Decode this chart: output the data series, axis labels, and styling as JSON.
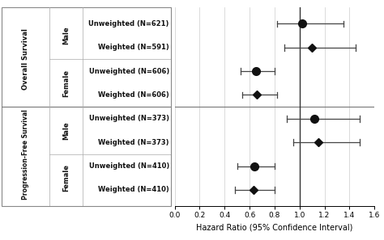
{
  "rows": [
    {
      "label": "Unweighted (N=621)",
      "hr": 1.02,
      "ci_lo": 0.82,
      "ci_hi": 1.35,
      "marker": "circle",
      "y": 7
    },
    {
      "label": "Weighted (N=591)",
      "hr": 1.1,
      "ci_lo": 0.88,
      "ci_hi": 1.45,
      "marker": "diamond",
      "y": 6
    },
    {
      "label": "Unweighted (N=606)",
      "hr": 0.65,
      "ci_lo": 0.53,
      "ci_hi": 0.8,
      "marker": "circle",
      "y": 5
    },
    {
      "label": "Weighted (N=606)",
      "hr": 0.66,
      "ci_lo": 0.54,
      "ci_hi": 0.82,
      "marker": "diamond",
      "y": 4
    },
    {
      "label": "Unweighted (N=373)",
      "hr": 1.12,
      "ci_lo": 0.9,
      "ci_hi": 1.48,
      "marker": "circle",
      "y": 3
    },
    {
      "label": "Weighted (N=373)",
      "hr": 1.15,
      "ci_lo": 0.95,
      "ci_hi": 1.48,
      "marker": "diamond",
      "y": 2
    },
    {
      "label": "Unweighted (N=410)",
      "hr": 0.64,
      "ci_lo": 0.5,
      "ci_hi": 0.8,
      "marker": "circle",
      "y": 1
    },
    {
      "label": "Weighted (N=410)",
      "hr": 0.63,
      "ci_lo": 0.48,
      "ci_hi": 0.8,
      "marker": "diamond",
      "y": 0
    }
  ],
  "xlabel": "Hazard Ratio (95% Confidence Interval)",
  "xlim": [
    0.0,
    1.6
  ],
  "xticks": [
    0.0,
    0.2,
    0.4,
    0.6,
    0.8,
    1.0,
    1.2,
    1.4,
    1.6
  ],
  "ref_line": 1.0,
  "marker_color": "#111111",
  "line_color": "#444444",
  "background_color": "#ffffff",
  "border_color": "#888888",
  "grid_color": "#cccccc",
  "text_color": "#111111",
  "section_div_color": "#777777",
  "group_div_color": "#aaaaaa"
}
